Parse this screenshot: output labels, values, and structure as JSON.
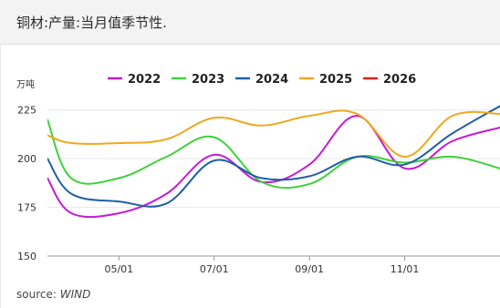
{
  "header": {
    "title": "铜材:产量:当月值季节性."
  },
  "footer": {
    "source_label": "source:",
    "source_value": "WIND"
  },
  "colors": {
    "2022": "#c41bd6",
    "2023": "#3fd13a",
    "2024": "#1f5fa8",
    "2025": "#f0a81e",
    "2026": "#e61e1e",
    "grid": "#e6e6e6",
    "axis": "#333333"
  },
  "chart_data": {
    "type": "line",
    "ylabel": "万吨",
    "ylim": [
      150,
      230
    ],
    "yticks": [
      150,
      175,
      200,
      225
    ],
    "grid": "horizontal",
    "legend_position": "top",
    "x_ticks": [
      {
        "label": "05/01",
        "month": 5
      },
      {
        "label": "07/01",
        "month": 7
      },
      {
        "label": "09/01",
        "month": 9
      },
      {
        "label": "11/01",
        "month": 11
      }
    ],
    "xlim": [
      3.5,
      13.0
    ],
    "series": [
      {
        "name": "2022",
        "x": [
          3.5,
          4,
          5,
          6,
          7,
          8,
          9,
          10,
          11,
          12,
          13
        ],
        "y": [
          190,
          172,
          172,
          182,
          202,
          188,
          197,
          222,
          195,
          209,
          216
        ]
      },
      {
        "name": "2023",
        "x": [
          3.5,
          4,
          5,
          6,
          7,
          8,
          9,
          10,
          11,
          12,
          13
        ],
        "y": [
          220,
          190,
          190,
          201,
          211,
          188,
          187,
          201,
          198,
          201,
          195
        ]
      },
      {
        "name": "2024",
        "x": [
          3.5,
          4,
          5,
          6,
          7,
          8,
          9,
          10,
          11,
          12,
          13
        ],
        "y": [
          200,
          182,
          178,
          177,
          199,
          190,
          191,
          201,
          197,
          213,
          227
        ]
      },
      {
        "name": "2025",
        "x": [
          3.5,
          4,
          5,
          6,
          7,
          8,
          9,
          10,
          11,
          12,
          13
        ],
        "y": [
          212,
          208,
          208,
          210,
          221,
          217,
          222,
          223,
          201,
          222,
          223
        ]
      },
      {
        "name": "2026",
        "x": [],
        "y": []
      }
    ]
  }
}
